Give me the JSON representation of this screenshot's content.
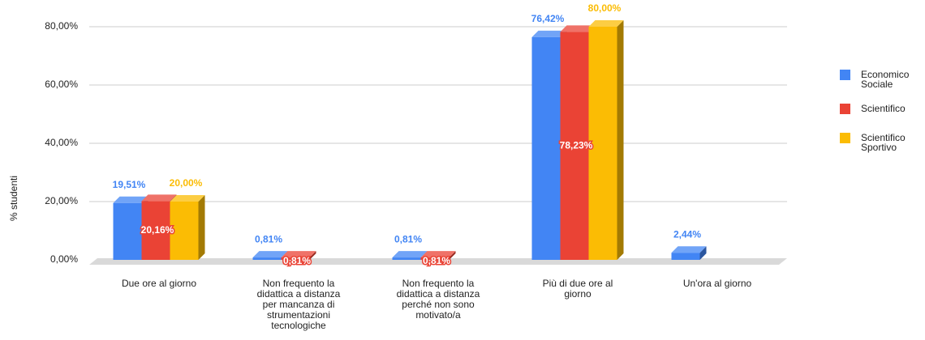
{
  "chart_data": {
    "type": "bar3d",
    "y_label": "% studenti",
    "categories": [
      "Due ore al giorno",
      "Non frequento la didattica a distanza per mancanza di strumentazioni tecnologiche",
      "Non frequento la didattica a distanza perché non sono motivato/a",
      "Più di due ore al giorno",
      "Un'ora al giorno"
    ],
    "series": [
      {
        "name": "Economico Sociale",
        "color": "#4285f4",
        "values": [
          19.51,
          0.81,
          0.81,
          76.42,
          2.44
        ],
        "value_labels": [
          "19,51%",
          "0,81%",
          "0,81%",
          "76,42%",
          "2,44%"
        ]
      },
      {
        "name": "Scientifico",
        "color": "#ea4335",
        "values": [
          20.16,
          0.81,
          0.81,
          78.23,
          null
        ],
        "value_labels": [
          "20,16%",
          "0,81%",
          "0,81%",
          "78,23%",
          null
        ]
      },
      {
        "name": "Scientifico Sportivo",
        "color": "#fbbc04",
        "values": [
          20.0,
          null,
          null,
          80.0,
          null
        ],
        "value_labels": [
          "20,00%",
          null,
          null,
          "80,00%",
          null
        ]
      }
    ],
    "ylim": [
      0,
      80
    ],
    "yticks": [
      {
        "value": 0,
        "label": "0,00%"
      },
      {
        "value": 20,
        "label": "20,00%"
      },
      {
        "value": 40,
        "label": "40,00%"
      },
      {
        "value": 60,
        "label": "60,00%"
      },
      {
        "value": 80,
        "label": "80,00%"
      }
    ],
    "grid": true,
    "legend": "right"
  }
}
